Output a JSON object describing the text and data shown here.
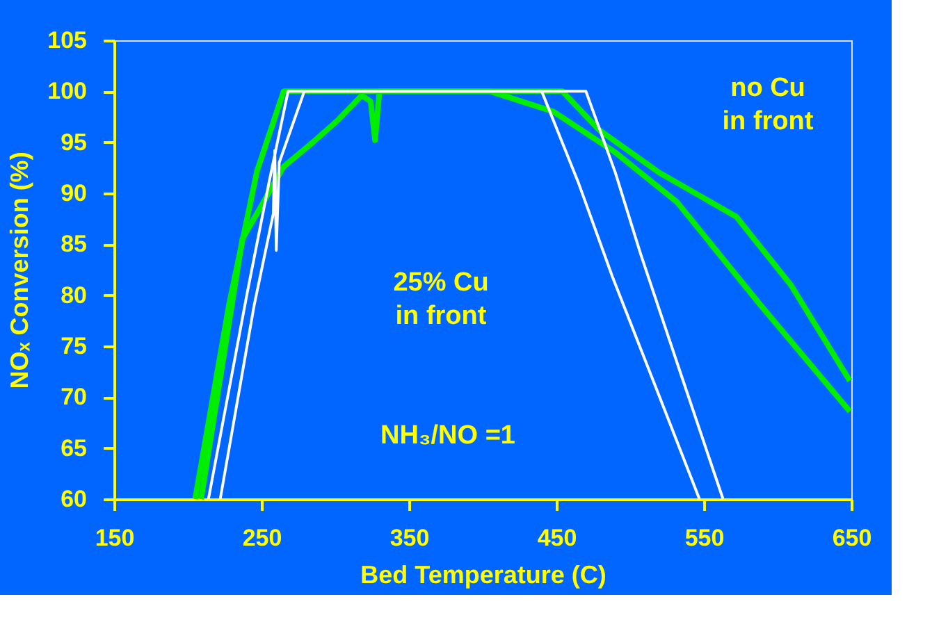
{
  "chart_data": {
    "type": "line",
    "xlabel": "Bed Temperature (C)",
    "ylabel": "NOₓ Conversion (%)",
    "xlim": [
      150,
      650
    ],
    "xticks": [
      150,
      250,
      350,
      450,
      550,
      650
    ],
    "ylim": [
      60,
      105
    ],
    "yticks": [
      60,
      65,
      70,
      75,
      80,
      85,
      90,
      95,
      100,
      105
    ],
    "grid": false,
    "marker": "none",
    "line_style": "solid",
    "series": [
      {
        "color": "#00ee00",
        "x": [
          205,
          228,
          247,
          265,
          300,
          350,
          400,
          454,
          479,
          520,
          572,
          609,
          649
        ],
        "values": [
          60,
          79.1,
          92.2,
          100,
          100,
          100,
          100,
          100,
          96.2,
          92,
          87.7,
          81,
          71.6
        ]
      },
      {
        "color": "#00ee00",
        "x": [
          209,
          237,
          265,
          284,
          302,
          318,
          324,
          327,
          330,
          350,
          405,
          448,
          490,
          532,
          588,
          649
        ],
        "values": [
          60,
          85.5,
          92.6,
          94.9,
          97.2,
          99.6,
          99,
          95.2,
          100,
          100,
          100,
          98,
          94,
          89.1,
          79.1,
          68.6
        ]
      },
      {
        "color": "#ffffff",
        "x": [
          214,
          240,
          255,
          268,
          350,
          440,
          465,
          488,
          520,
          547
        ],
        "values": [
          60,
          80,
          91,
          100,
          100,
          100,
          91,
          81.8,
          70,
          60
        ]
      },
      {
        "color": "#ffffff",
        "x": [
          222,
          245,
          258,
          259,
          260,
          262,
          279,
          350,
          470,
          490,
          507,
          535,
          563
        ],
        "values": [
          60,
          79,
          88,
          94.2,
          84.4,
          93,
          100,
          100,
          100,
          92,
          84.1,
          72,
          60
        ]
      }
    ],
    "annotations": [
      "no Cu\nin front",
      "25% Cu\nin front",
      "NH₃/NO =1"
    ]
  }
}
